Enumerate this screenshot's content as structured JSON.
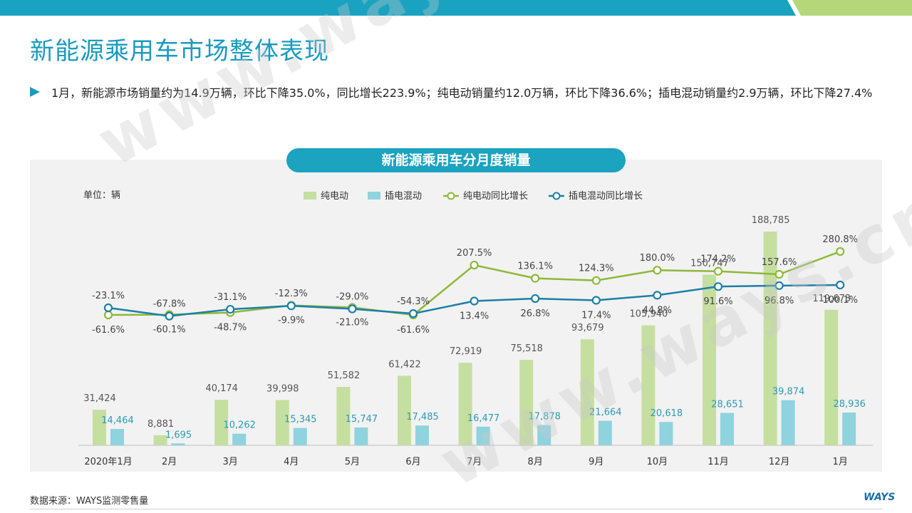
{
  "page": {
    "title": "新能源乘用车市场整体表现",
    "bullet": "1月，新能源市场销量约为14.9万辆，环比下降35.0%，同比增长223.9%；纯电动销量约12.0万辆，环比下降36.6%；插电混动销量约2.9万辆，环比下降27.4%",
    "source": "数据来源：WAYS监测零售量",
    "logo": "WAYS",
    "watermark": "www.ways.cn"
  },
  "colors": {
    "accent": "#1a9bbd",
    "bev_bar": "#c5dfa0",
    "phev_bar": "#8fd3de",
    "bev_line": "#8db83a",
    "phev_line": "#1d7fa6",
    "top_bar_blue": "#1aa3c0",
    "top_bar_green": "#b5d77a"
  },
  "chart_data": {
    "type": "bar",
    "title": "新能源乘用车分月度销量",
    "unit_label": "单位：辆",
    "categories": [
      "2020年1月",
      "2月",
      "3月",
      "4月",
      "5月",
      "6月",
      "7月",
      "8月",
      "9月",
      "10月",
      "11月",
      "12月",
      "1月"
    ],
    "series": [
      {
        "name": "纯电动",
        "kind": "bar",
        "values": [
          31424,
          8881,
          40174,
          39998,
          51582,
          61422,
          72919,
          75518,
          93679,
          105940,
          150747,
          188785,
          119673
        ],
        "labels": [
          "31,424",
          "8,881",
          "40,174",
          "39,998",
          "51,582",
          "61,422",
          "72,919",
          "75,518",
          "93,679",
          "105,940",
          "150,747",
          "188,785",
          "119,673"
        ]
      },
      {
        "name": "插电混动",
        "kind": "bar",
        "values": [
          14464,
          1695,
          10262,
          15345,
          15747,
          17485,
          16477,
          17878,
          21664,
          20618,
          28651,
          39874,
          28936
        ],
        "labels": [
          "14,464",
          "1,695",
          "10,262",
          "15,345",
          "15,747",
          "17,485",
          "16,477",
          "17,878",
          "21,664",
          "20,618",
          "28,651",
          "39,874",
          "28,936"
        ]
      },
      {
        "name": "纯电动同比增长",
        "kind": "line",
        "values": [
          -61.6,
          -60.1,
          -48.7,
          -9.9,
          -21.0,
          -61.6,
          207.5,
          136.1,
          124.3,
          180.0,
          174.2,
          157.6,
          280.8
        ],
        "labels": [
          "-61.6%",
          "-60.1%",
          "-48.7%",
          "-9.9%",
          "-21.0%",
          "-61.6%",
          "207.5%",
          "136.1%",
          "124.3%",
          "180.0%",
          "174.2%",
          "157.6%",
          "280.8%"
        ]
      },
      {
        "name": "插电混动同比增长",
        "kind": "line",
        "values": [
          -23.1,
          -67.8,
          -31.1,
          -12.3,
          -29.0,
          -54.3,
          13.4,
          26.8,
          17.4,
          44.8,
          91.6,
          96.8,
          100.1
        ],
        "labels": [
          "-23.1%",
          "-67.8%",
          "-31.1%",
          "-12.3%",
          "-29.0%",
          "-54.3%",
          "13.4%",
          "26.8%",
          "17.4%",
          "44.8%",
          "91.6%",
          "96.8%",
          "100.1%"
        ]
      }
    ],
    "legend_position": "top"
  }
}
